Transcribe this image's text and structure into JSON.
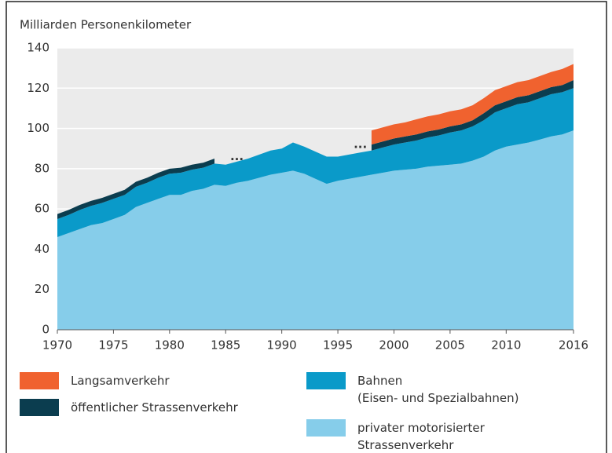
{
  "chart_data": {
    "type": "stacked_area",
    "title": "Milliarden Personenkilometer",
    "x": [
      1970,
      1971,
      1972,
      1973,
      1974,
      1975,
      1976,
      1977,
      1978,
      1979,
      1980,
      1981,
      1982,
      1983,
      1984,
      1985,
      1986,
      1987,
      1988,
      1989,
      1990,
      1991,
      1992,
      1993,
      1994,
      1995,
      1996,
      1997,
      1998,
      1999,
      2000,
      2001,
      2002,
      2003,
      2004,
      2005,
      2006,
      2007,
      2008,
      2009,
      2010,
      2011,
      2012,
      2013,
      2014,
      2015,
      2016
    ],
    "series": [
      {
        "name": "privater motorisierter\nStrassenverkehr",
        "color": "#86cdea",
        "values": [
          46,
          48,
          50,
          52,
          53,
          55,
          57,
          61,
          63,
          65,
          67,
          67,
          69,
          70,
          72,
          71.5,
          73,
          74,
          75.5,
          77,
          78,
          79,
          77.5,
          75,
          72.5,
          74,
          75,
          76,
          77,
          78,
          79,
          79.5,
          80,
          81,
          81.5,
          82,
          82.5,
          84,
          86,
          89,
          91,
          92,
          93,
          94.5,
          96,
          97,
          99
        ]
      },
      {
        "name": "Bahnen\n(Eisen- und Spezialbahnen)",
        "color": "#0a9ac9",
        "values": [
          9,
          9,
          9.5,
          9.5,
          10,
          10,
          10,
          10,
          10,
          10.5,
          10.5,
          11,
          10.5,
          10.5,
          10.5,
          10.5,
          10.5,
          11,
          11.5,
          12,
          12,
          14,
          13.5,
          13.5,
          13.5,
          12,
          12,
          12,
          12,
          12.5,
          13,
          13.5,
          14,
          14.5,
          15,
          16,
          16.5,
          17,
          18,
          19,
          19,
          20,
          20,
          20.5,
          21,
          21,
          21
        ]
      },
      {
        "name": "öffentlicher Strassenverkehr",
        "color": "#0b3d4f",
        "values": [
          2.5,
          2.5,
          2.5,
          2.5,
          2.5,
          2.5,
          2.5,
          2.5,
          2.5,
          2.5,
          2.5,
          2.5,
          2.5,
          2.5,
          2.5,
          null,
          null,
          null,
          null,
          null,
          null,
          null,
          null,
          null,
          null,
          null,
          null,
          null,
          3,
          3,
          3,
          3,
          3,
          3,
          3,
          3,
          3,
          3,
          3.5,
          3.5,
          3.5,
          3.5,
          3.5,
          3.5,
          3.5,
          3.5,
          4
        ]
      },
      {
        "name": "Langsamverkehr",
        "color": "#f0622f",
        "values": [
          null,
          null,
          null,
          null,
          null,
          null,
          null,
          null,
          null,
          null,
          null,
          null,
          null,
          null,
          null,
          null,
          null,
          null,
          null,
          null,
          null,
          null,
          null,
          null,
          null,
          null,
          null,
          null,
          7,
          7,
          7,
          7,
          7.5,
          7.5,
          7.5,
          7.5,
          7.5,
          7.5,
          7.5,
          7.5,
          7.5,
          7.5,
          7.5,
          7.5,
          7.5,
          8,
          8
        ]
      }
    ],
    "annotations": [
      {
        "text": "...",
        "x": 1986,
        "y": 86
      },
      {
        "text": "...",
        "x": 1997,
        "y": 92
      }
    ],
    "xlim": [
      1970,
      2016
    ],
    "xticks": [
      1970,
      1975,
      1980,
      1985,
      1990,
      1995,
      2000,
      2005,
      2010,
      2016
    ],
    "ylim": [
      0,
      140
    ],
    "yticks": [
      0,
      20,
      40,
      60,
      80,
      100,
      120,
      140
    ],
    "grid": true
  }
}
